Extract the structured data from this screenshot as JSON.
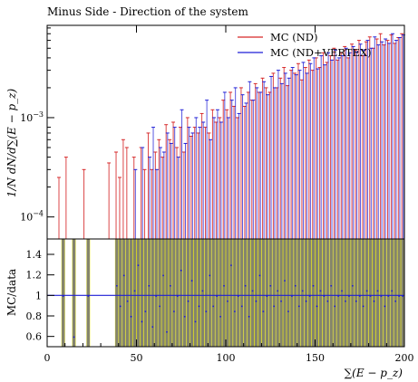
{
  "chart_data": [
    {
      "panel": "upper",
      "type": "histogram",
      "title": "Minus Side - Direction of the system",
      "ylabel": "1/N dN/d∑(E − p_z)",
      "yscale": "log",
      "ylim": [
        6e-05,
        0.0085
      ],
      "xlim": [
        0,
        200
      ],
      "ytick_labels": [
        "10^{-4}",
        "10^{-3}"
      ],
      "legend_position": "top-right",
      "series": [
        {
          "name": "MC (ND)",
          "color": "#d62728",
          "x_start": 0,
          "bin_width": 2,
          "values": [
            0,
            0,
            0,
            0.00025,
            0,
            0.0004,
            0,
            0,
            0,
            0,
            0.0003,
            0,
            0,
            0,
            0,
            0,
            0,
            0.00035,
            0,
            0.00045,
            0.00025,
            0.0006,
            0.0005,
            0,
            0.0004,
            0,
            0.0005,
            0.0003,
            0.0007,
            0.0003,
            0.00045,
            0.0006,
            0.0004,
            0.00085,
            0.0006,
            0.0009,
            0.0005,
            0.0008,
            0.00045,
            0.001,
            0.00065,
            0.0008,
            0.0007,
            0.0011,
            0.0008,
            0.0007,
            0.0012,
            0.0009,
            0.001,
            0.0015,
            0.0012,
            0.0018,
            0.0013,
            0.001,
            0.002,
            0.0013,
            0.0018,
            0.0015,
            0.0022,
            0.0018,
            0.0025,
            0.002,
            0.0018,
            0.0028,
            0.002,
            0.0025,
            0.0032,
            0.0021,
            0.003,
            0.0028,
            0.0035,
            0.0024,
            0.0032,
            0.0038,
            0.003,
            0.004,
            0.0032,
            0.0045,
            0.0036,
            0.0042,
            0.005,
            0.0038,
            0.0045,
            0.0052,
            0.004,
            0.0055,
            0.0048,
            0.006,
            0.0042,
            0.0058,
            0.0065,
            0.005,
            0.0062,
            0.007,
            0.0054,
            0.006,
            0.0068,
            0.0056,
            0.0064,
            0.007
          ]
        },
        {
          "name": "MC (ND+VERTEX)",
          "color": "#1f1fd6",
          "x_start": 0,
          "bin_width": 2,
          "values": [
            0,
            0,
            0,
            0,
            0,
            0,
            0,
            0,
            0,
            0,
            0,
            0,
            0,
            0,
            0,
            0,
            0,
            0,
            0,
            0,
            0,
            0,
            0,
            0,
            0.0003,
            0,
            0.0005,
            0,
            0.0004,
            0.0008,
            0.0003,
            0.0005,
            0.00045,
            0.0007,
            0.00055,
            0.0008,
            0.0004,
            0.0012,
            0.00055,
            0.0008,
            0.0007,
            0.001,
            0.0008,
            0.0009,
            0.0015,
            0.0006,
            0.001,
            0.0012,
            0.0009,
            0.0018,
            0.001,
            0.0015,
            0.002,
            0.0011,
            0.0017,
            0.0014,
            0.0023,
            0.0015,
            0.002,
            0.0018,
            0.0023,
            0.0017,
            0.0026,
            0.002,
            0.003,
            0.0022,
            0.0028,
            0.0025,
            0.0032,
            0.0027,
            0.003,
            0.0036,
            0.0028,
            0.0035,
            0.004,
            0.0031,
            0.0042,
            0.0034,
            0.0045,
            0.0038,
            0.0048,
            0.004,
            0.0042,
            0.005,
            0.0045,
            0.0052,
            0.0046,
            0.0055,
            0.0048,
            0.006,
            0.005,
            0.0065,
            0.0054,
            0.0058,
            0.0062,
            0.0056,
            0.007,
            0.006,
            0.0064,
            0.0068
          ]
        }
      ]
    },
    {
      "panel": "lower",
      "type": "histogram",
      "ylabel": "MC/data",
      "xlabel": "∑(E − p_z)",
      "ylim": [
        0.5,
        1.55
      ],
      "xlim": [
        0,
        200
      ],
      "xticks": [
        0,
        50,
        100,
        150,
        200
      ],
      "yticks": [
        0.6,
        0.8,
        1,
        1.2,
        1.4
      ],
      "reference_line": 1,
      "band_color": "#ffff00",
      "x_start": 0,
      "bin_width": 2,
      "ratio": [
        0,
        0,
        0,
        0,
        1,
        0,
        0,
        0.6,
        0,
        0,
        0,
        1,
        0,
        0,
        0,
        0,
        0,
        0,
        0,
        1.1,
        0.9,
        1.2,
        0.95,
        0.8,
        1.05,
        1.3,
        0.75,
        0.85,
        1.1,
        0.7,
        1.0,
        0.9,
        1.2,
        0.65,
        1.1,
        0.85,
        1.0,
        1.25,
        0.8,
        0.95,
        1.15,
        0.75,
        0.9,
        1.05,
        0.85,
        1.2,
        0.9,
        1.0,
        0.8,
        1.1,
        0.95,
        1.3,
        0.85,
        1.0,
        0.9,
        1.1,
        0.8,
        1.05,
        0.95,
        1.2,
        0.85,
        1.0,
        1.1,
        0.9,
        1.05,
        0.95,
        1.15,
        0.85,
        1.0,
        1.1,
        0.9,
        1.05,
        0.95,
        1.0,
        1.1,
        0.9,
        1.05,
        1.0,
        0.95,
        1.1,
        0.9,
        1.0,
        1.05,
        0.95,
        1.0,
        1.1,
        0.95,
        1.0,
        0.9,
        1.05,
        1.0,
        0.95,
        1.05,
        1.0,
        0.9,
        1.0,
        1.05,
        0.95,
        1.0,
        1.0
      ]
    }
  ]
}
